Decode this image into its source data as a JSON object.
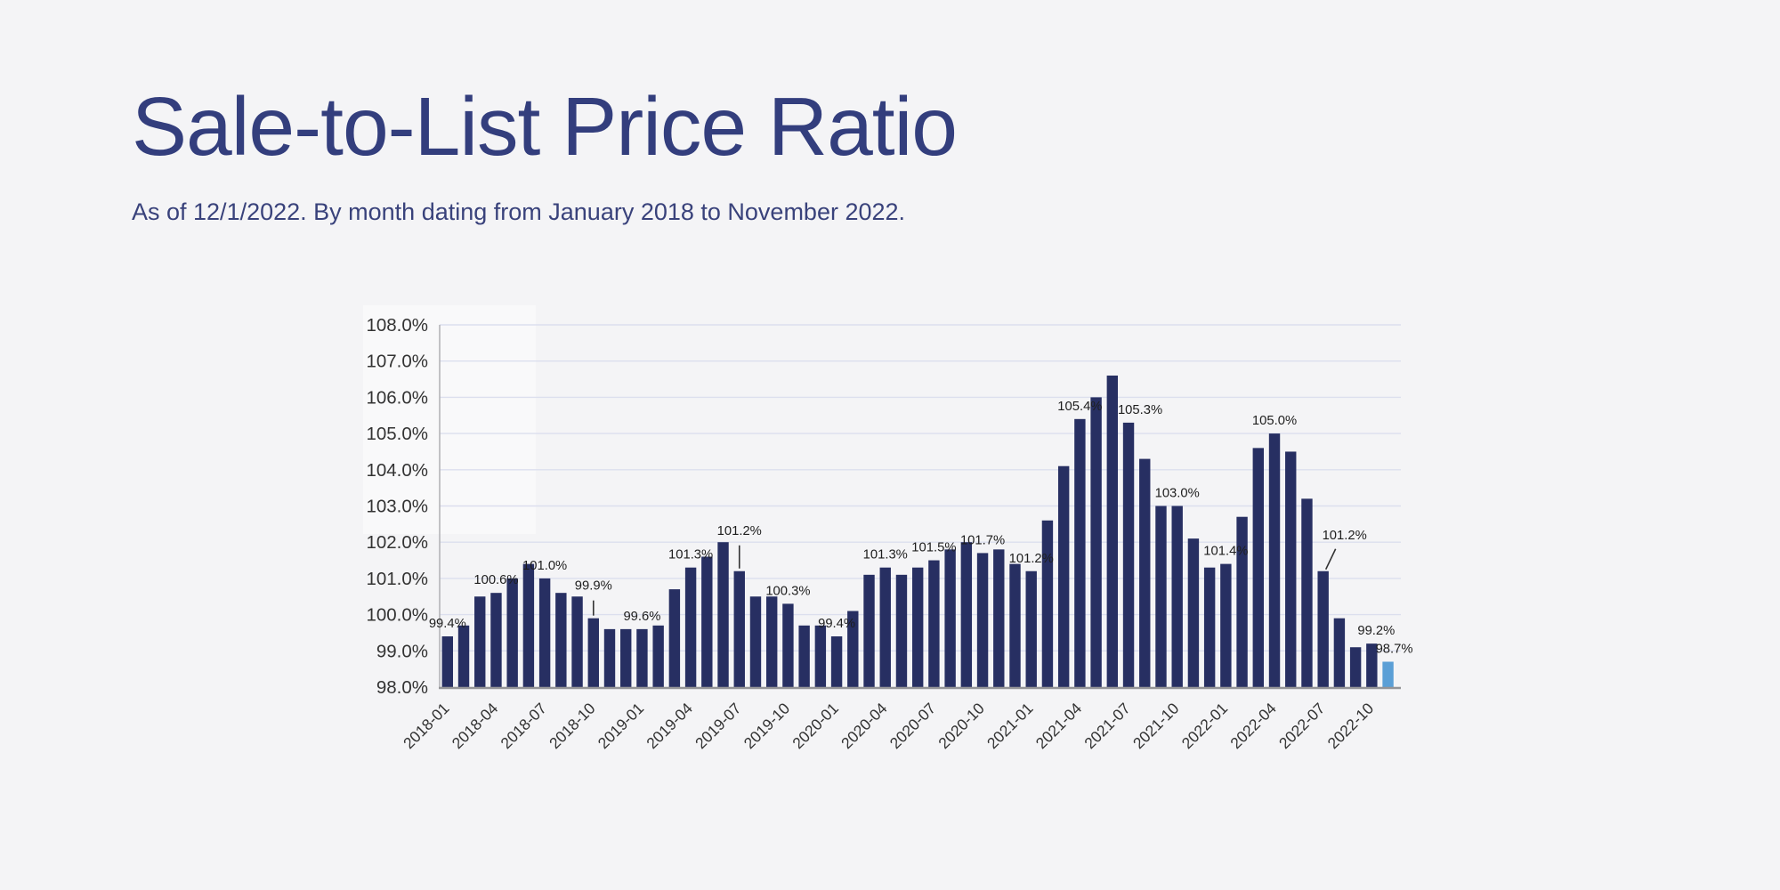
{
  "header": {
    "title": "Sale-to-List Price Ratio",
    "subtitle": "As of 12/1/2022. By month dating from January 2018 to November 2022."
  },
  "colors": {
    "background": "#f4f4f6",
    "title_text": "#333e7d",
    "subtitle_text": "#39427b",
    "bar": "#272f62",
    "bar_highlight": "#5b9fd6",
    "gridline": "#dcdfee",
    "y_axis_line": "#b4b4b8",
    "baseline": "#949497",
    "tick_text": "#333333",
    "data_label_text": "#1e1e1e",
    "leader_line": "#333333"
  },
  "chart_data": {
    "type": "bar",
    "title": "Sale-to-List Price Ratio",
    "xlabel": "",
    "ylabel": "",
    "ylim": [
      98,
      108
    ],
    "grid": true,
    "legend": false,
    "y_tick_labels": [
      "98.0%",
      "99.0%",
      "100.0%",
      "101.0%",
      "102.0%",
      "103.0%",
      "104.0%",
      "105.0%",
      "106.0%",
      "107.0%",
      "108.0%"
    ],
    "x_tick_labels": [
      "2018-01",
      "2018-04",
      "2018-07",
      "2018-10",
      "2019-01",
      "2019-04",
      "2019-07",
      "2019-10",
      "2020-01",
      "2020-04",
      "2020-07",
      "2020-10",
      "2021-01",
      "2021-04",
      "2021-07",
      "2021-10",
      "2022-01",
      "2022-04",
      "2022-07",
      "2022-10"
    ],
    "categories": [
      "2018-01",
      "2018-02",
      "2018-03",
      "2018-04",
      "2018-05",
      "2018-06",
      "2018-07",
      "2018-08",
      "2018-09",
      "2018-10",
      "2018-11",
      "2018-12",
      "2019-01",
      "2019-02",
      "2019-03",
      "2019-04",
      "2019-05",
      "2019-06",
      "2019-07",
      "2019-08",
      "2019-09",
      "2019-10",
      "2019-11",
      "2019-12",
      "2020-01",
      "2020-02",
      "2020-03",
      "2020-04",
      "2020-05",
      "2020-06",
      "2020-07",
      "2020-08",
      "2020-09",
      "2020-10",
      "2020-11",
      "2020-12",
      "2021-01",
      "2021-02",
      "2021-03",
      "2021-04",
      "2021-05",
      "2021-06",
      "2021-07",
      "2021-08",
      "2021-09",
      "2021-10",
      "2021-11",
      "2021-12",
      "2022-01",
      "2022-02",
      "2022-03",
      "2022-04",
      "2022-05",
      "2022-06",
      "2022-07",
      "2022-08",
      "2022-09",
      "2022-10",
      "2022-11"
    ],
    "values": [
      99.4,
      99.7,
      100.5,
      100.6,
      101.0,
      101.4,
      101.0,
      100.6,
      100.5,
      99.9,
      99.6,
      99.6,
      99.6,
      99.7,
      100.7,
      101.3,
      101.6,
      102.0,
      101.2,
      100.5,
      100.5,
      100.3,
      99.7,
      99.7,
      99.4,
      100.1,
      101.1,
      101.3,
      101.1,
      101.3,
      101.5,
      101.8,
      102.0,
      101.7,
      101.8,
      101.4,
      101.2,
      102.6,
      104.1,
      105.4,
      106.0,
      106.6,
      105.3,
      104.3,
      103.0,
      103.0,
      102.1,
      101.3,
      101.4,
      102.7,
      104.6,
      105.0,
      104.5,
      103.2,
      101.2,
      99.9,
      99.1,
      99.2,
      98.7
    ],
    "highlight_last_bar": true,
    "data_labels": [
      {
        "i": 0,
        "text": "99.4%"
      },
      {
        "i": 3,
        "text": "100.6%"
      },
      {
        "i": 6,
        "text": "101.0%"
      },
      {
        "i": 9,
        "text": "99.9%",
        "leader": "vertical",
        "raise": 22
      },
      {
        "i": 12,
        "text": "99.6%"
      },
      {
        "i": 15,
        "text": "101.3%"
      },
      {
        "i": 18,
        "text": "101.2%",
        "leader": "vertical",
        "raise": 31
      },
      {
        "i": 21,
        "text": "100.3%"
      },
      {
        "i": 24,
        "text": "99.4%"
      },
      {
        "i": 27,
        "text": "101.3%"
      },
      {
        "i": 30,
        "text": "101.5%"
      },
      {
        "i": 33,
        "text": "101.7%"
      },
      {
        "i": 36,
        "text": "101.2%"
      },
      {
        "i": 39,
        "text": "105.4%"
      },
      {
        "i": 42,
        "text": "105.3%",
        "dx": 13
      },
      {
        "i": 45,
        "text": "103.0%"
      },
      {
        "i": 48,
        "text": "101.4%"
      },
      {
        "i": 51,
        "text": "105.0%"
      },
      {
        "i": 54,
        "text": "101.2%",
        "leader": "diagonal",
        "raise": 26,
        "dx": 24
      },
      {
        "i": 57,
        "text": "99.2%",
        "dx": 5
      },
      {
        "i": 58,
        "text": "98.7%",
        "dx": 7
      }
    ]
  }
}
